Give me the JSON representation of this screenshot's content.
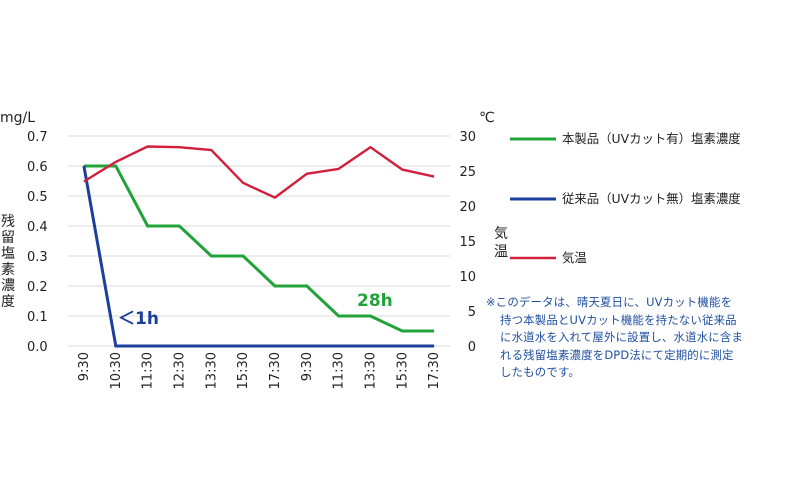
{
  "chart_data": {
    "type": "line",
    "categories": [
      "9:30",
      "10:30",
      "11:30",
      "12:30",
      "13:30",
      "15:30",
      "17:30",
      "9:30",
      "11:30",
      "13:30",
      "15:30",
      "17:30"
    ],
    "y_left": {
      "unit": "mg/L",
      "label": "残留塩素濃度",
      "range": [
        0,
        0.7
      ],
      "ticks": [
        "0.0",
        "0.1",
        "0.2",
        "0.3",
        "0.4",
        "0.5",
        "0.6",
        "0.7"
      ]
    },
    "y_right": {
      "unit": "℃",
      "label": "気温",
      "range": [
        0,
        30
      ],
      "ticks": [
        "0",
        "5",
        "10",
        "15",
        "20",
        "25",
        "30"
      ]
    },
    "grid": true,
    "series": [
      {
        "name": "本製品（UVカット有）塩素濃度",
        "axis": "left",
        "color": "#22a33a",
        "values": [
          0.6,
          0.6,
          0.4,
          0.4,
          0.3,
          0.3,
          0.2,
          0.2,
          0.1,
          0.1,
          0.05,
          0.05
        ]
      },
      {
        "name": "従来品（UVカット無）塩素濃度",
        "axis": "left",
        "color": "#1b3f9b",
        "values": [
          0.6,
          0.0,
          0.0,
          0.0,
          0.0,
          0.0,
          0.0,
          0.0,
          0.0,
          0.0,
          0.0,
          0.0
        ]
      },
      {
        "name": "気温",
        "axis": "right",
        "color": "#d21f3c",
        "values": [
          23.5,
          26.3,
          28.5,
          28.4,
          28.0,
          23.3,
          21.2,
          24.6,
          25.3,
          28.4,
          25.2,
          24.2
        ]
      }
    ],
    "annotations": [
      {
        "text": "＜1h",
        "color": "#1b3f9b"
      },
      {
        "text": "28h",
        "color": "#22a33a"
      }
    ],
    "legend_placement": "right"
  },
  "note": {
    "lines": [
      "※このデータは、晴天夏日に、UVカット機能を",
      "持つ本製品とUVカット機能を持たない従来品",
      "に水道水を入れて屋外に設置し、水道水に含ま",
      "れる残留塩素濃度をDPD法にて定期的に測定",
      "したものです。"
    ]
  }
}
